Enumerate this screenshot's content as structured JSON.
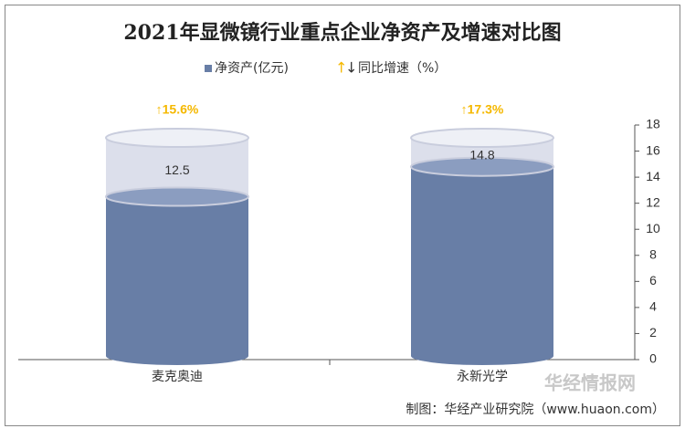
{
  "chart_data": {
    "type": "bar",
    "title": "2021年显微镜行业重点企业净资产及增速对比图",
    "categories": [
      "麦克奥迪",
      "永新光学"
    ],
    "series": [
      {
        "name": "净资产(亿元)",
        "color": "#687ea6",
        "values": [
          12.5,
          14.8
        ]
      },
      {
        "name": "同比增速（%）",
        "legend_symbol": [
          "↑",
          "↓"
        ],
        "color": "#f5b800",
        "values": [
          15.6,
          17.3
        ],
        "value_labels": [
          "↑15.6%",
          "↑17.3%"
        ]
      }
    ],
    "ylim": [
      0,
      18
    ],
    "yticks": [
      0,
      2,
      4,
      6,
      8,
      10,
      12,
      14,
      16,
      18
    ],
    "y_axis_side": "right",
    "source": "制图：华经产业研究院（www.huaon.com）",
    "watermark": "华经情报网"
  }
}
